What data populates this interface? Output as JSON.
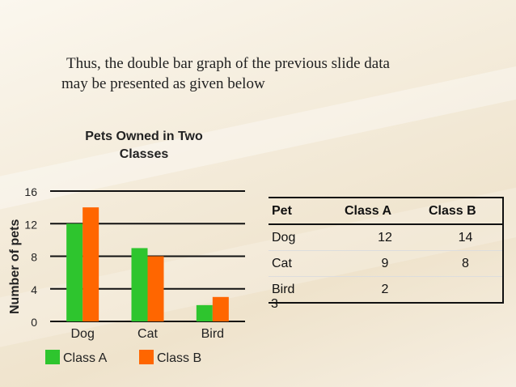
{
  "intro": {
    "line1": "Thus, the double bar graph  of the previous slide data",
    "line2": "may be presented as given below"
  },
  "chart_data": {
    "type": "bar",
    "title": "Pets Owned in Two Classes",
    "ylabel": "Number of pets",
    "xlabel": "",
    "categories": [
      "Dog",
      "Cat",
      "Bird"
    ],
    "series": [
      {
        "name": "Class A",
        "values": [
          12,
          9,
          2
        ],
        "color": "#2ec52e"
      },
      {
        "name": "Class B",
        "values": [
          14,
          8,
          3
        ],
        "color": "#ff6600"
      }
    ],
    "ylim": [
      0,
      16
    ],
    "yticks": [
      "0",
      "4",
      "8",
      "12",
      "16"
    ],
    "grid": true,
    "legend": "bottom"
  },
  "table": {
    "headers": [
      "Pet",
      "Class A",
      "Class B"
    ],
    "rows": [
      [
        "Dog",
        "12",
        "14"
      ],
      [
        "Cat",
        "9",
        "8"
      ],
      [
        "Bird",
        "2",
        ""
      ]
    ],
    "overflow_value": "3"
  }
}
